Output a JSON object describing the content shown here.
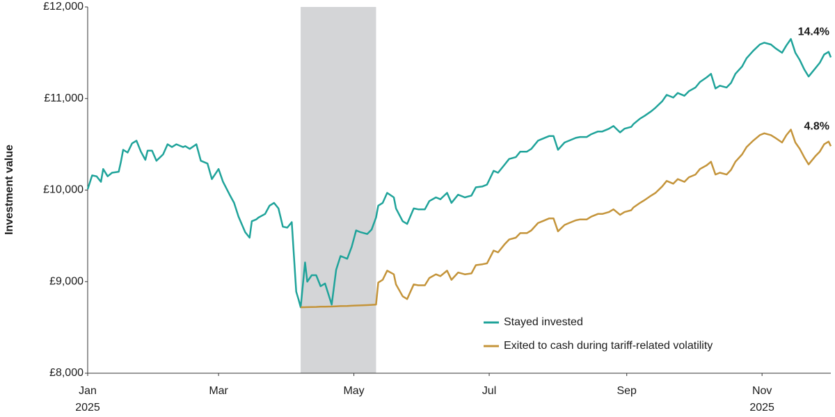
{
  "chart_data": {
    "type": "line",
    "y_label": "Investment value",
    "x": [
      0,
      2,
      4,
      6,
      7,
      9,
      11,
      14,
      15,
      16,
      18,
      20,
      22,
      24,
      26,
      27,
      29,
      31,
      34,
      36,
      38,
      40,
      43,
      44,
      46,
      49,
      51,
      54,
      56,
      59,
      61,
      64,
      66,
      68,
      71,
      73,
      74,
      76,
      77,
      80,
      82,
      84,
      86,
      88,
      90,
      92,
      94,
      95,
      96,
      98,
      99,
      101,
      103,
      105,
      107,
      110,
      112,
      114,
      117,
      119,
      121,
      123,
      126,
      128,
      130,
      131,
      133,
      135,
      138,
      139,
      142,
      144,
      147,
      149,
      152,
      154,
      157,
      159,
      162,
      164,
      167,
      170,
      173,
      175,
      178,
      180,
      183,
      185,
      188,
      190,
      193,
      195,
      198,
      200,
      203,
      205,
      208,
      210,
      212,
      215,
      217,
      220,
      222,
      225,
      227,
      230,
      232,
      235,
      237,
      240,
      242,
      245,
      246,
      249,
      251,
      254,
      256,
      259,
      261,
      264,
      266,
      269,
      271,
      274,
      276,
      279,
      281,
      283,
      285,
      288,
      290,
      292,
      295,
      297,
      300,
      303,
      305,
      308,
      310,
      313,
      315,
      317,
      319,
      321,
      323,
      325,
      328,
      330,
      332,
      334,
      335
    ],
    "series": [
      {
        "name": "Stayed invested",
        "color": "#1fa39a",
        "end_label": "14.4%",
        "values": [
          10010,
          10160,
          10150,
          10090,
          10230,
          10150,
          10190,
          10200,
          10310,
          10440,
          10410,
          10510,
          10540,
          10420,
          10330,
          10430,
          10430,
          10320,
          10390,
          10500,
          10470,
          10500,
          10470,
          10480,
          10450,
          10500,
          10320,
          10290,
          10120,
          10230,
          10090,
          9950,
          9860,
          9710,
          9540,
          9480,
          9660,
          9680,
          9700,
          9740,
          9830,
          9860,
          9800,
          9600,
          9590,
          9650,
          8890,
          8810,
          8720,
          9210,
          9000,
          9070,
          9070,
          8950,
          8980,
          8750,
          9130,
          9280,
          9250,
          9380,
          9560,
          9540,
          9520,
          9570,
          9700,
          9830,
          9860,
          9970,
          9920,
          9800,
          9660,
          9630,
          9800,
          9790,
          9790,
          9880,
          9920,
          9900,
          9970,
          9860,
          9950,
          9920,
          9940,
          10030,
          10040,
          10060,
          10210,
          10190,
          10280,
          10340,
          10360,
          10420,
          10420,
          10450,
          10540,
          10560,
          10590,
          10590,
          10440,
          10520,
          10540,
          10570,
          10580,
          10580,
          10610,
          10640,
          10640,
          10670,
          10700,
          10630,
          10670,
          10690,
          10720,
          10780,
          10810,
          10860,
          10900,
          10970,
          11040,
          11010,
          11060,
          11030,
          11080,
          11120,
          11180,
          11230,
          11270,
          11110,
          11140,
          11120,
          11170,
          11270,
          11350,
          11440,
          11520,
          11590,
          11610,
          11590,
          11550,
          11500,
          11580,
          11650,
          11500,
          11420,
          11320,
          11240,
          11330,
          11390,
          11480,
          11510,
          11450
        ]
      },
      {
        "name": "Exited to cash during tariff-related volatility",
        "color": "#c4943a",
        "end_label": "4.8%",
        "values": [
          null,
          null,
          null,
          null,
          null,
          null,
          null,
          null,
          null,
          null,
          null,
          null,
          null,
          null,
          null,
          null,
          null,
          null,
          null,
          null,
          null,
          null,
          null,
          null,
          null,
          null,
          null,
          null,
          null,
          null,
          null,
          null,
          null,
          null,
          null,
          null,
          null,
          null,
          null,
          null,
          null,
          null,
          null,
          null,
          null,
          null,
          null,
          null,
          8720,
          8721,
          8722,
          8723,
          8724,
          8726,
          8727,
          8729,
          8731,
          8733,
          8735,
          8737,
          8739,
          8741,
          8744,
          8747,
          8750,
          8990,
          9020,
          9120,
          9080,
          8970,
          8840,
          8810,
          8970,
          8960,
          8960,
          9040,
          9080,
          9060,
          9120,
          9020,
          9100,
          9080,
          9090,
          9180,
          9190,
          9200,
          9340,
          9320,
          9410,
          9460,
          9480,
          9530,
          9530,
          9560,
          9640,
          9660,
          9690,
          9690,
          9550,
          9620,
          9640,
          9670,
          9680,
          9680,
          9710,
          9740,
          9740,
          9760,
          9790,
          9730,
          9760,
          9780,
          9810,
          9860,
          9890,
          9940,
          9970,
          10040,
          10100,
          10070,
          10120,
          10090,
          10140,
          10170,
          10230,
          10270,
          10310,
          10170,
          10190,
          10170,
          10220,
          10310,
          10390,
          10470,
          10540,
          10600,
          10620,
          10600,
          10570,
          10520,
          10600,
          10660,
          10520,
          10450,
          10360,
          10280,
          10370,
          10420,
          10500,
          10530,
          10480
        ]
      }
    ],
    "highlight": [
      96,
      130
    ],
    "highlight_color": "#d4d5d7",
    "xlim": [
      0,
      335
    ],
    "xticks": [
      {
        "value": 0,
        "label": "Jan",
        "year": "2025"
      },
      {
        "value": 59,
        "label": "Mar"
      },
      {
        "value": 120,
        "label": "May"
      },
      {
        "value": 181,
        "label": "Jul"
      },
      {
        "value": 243,
        "label": "Sep"
      },
      {
        "value": 304,
        "label": "Nov",
        "year": "2025"
      }
    ],
    "ylim": [
      8000,
      12000
    ],
    "yticks": [
      {
        "value": 8000,
        "label": "£8,000"
      },
      {
        "value": 9000,
        "label": "£9,000"
      },
      {
        "value": 10000,
        "label": "£10,000"
      },
      {
        "value": 11000,
        "label": "£11,000"
      },
      {
        "value": 12000,
        "label": "£12,000"
      }
    ],
    "legend": "bottom-right"
  }
}
